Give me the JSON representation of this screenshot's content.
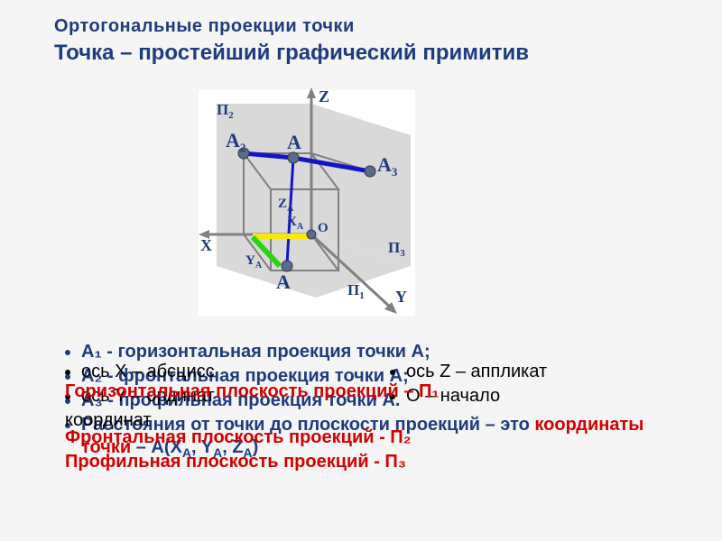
{
  "colors": {
    "navy": "#1f3b80",
    "red": "#d30000",
    "black": "#000000",
    "axis": "#808080",
    "plane_gray": "#d9d9d9",
    "proj_blue": "#1216c4",
    "proj_yellow": "#f7ea00",
    "proj_green": "#27d50b",
    "point": "#5b6b8a",
    "bg_white": "#ffffff"
  },
  "header": {
    "small": "Ортогональные проекции точки",
    "main": "Точка – простейший графический примитив"
  },
  "diagram": {
    "labels": {
      "Z": "Z",
      "X": "X",
      "Y": "Y",
      "O": "O",
      "P1": "П₁",
      "P2": "П₂",
      "P3": "П₃",
      "A": "А",
      "A1": "А₁",
      "A2": "А₂",
      "A3": "А₃",
      "xA": "X_A",
      "yA": "Y_A",
      "zA": "Z_A"
    }
  },
  "legend": {
    "layerA": [
      "А₁ - горизонтальная проекция точки А;",
      "А₂ - фронтальная проекция точки А;",
      "А₃ - профильная проекция точки А.",
      "Расстояния от точки до плоскости проекций – это  координаты точки  –  А(X_A, Y_A, Z_A)"
    ],
    "layerB_left": [
      "ось X – абсцисс",
      "ось Y – ординат",
      "координат"
    ],
    "layerB_right": [
      "ось Z – аппликат",
      "O – начало"
    ],
    "layerC": [
      "Горизонтальная плоскость проекций – П₁",
      "Фронтальная плоскость проекций - П₂",
      "Профильная плоскость проекций - П₃"
    ]
  }
}
